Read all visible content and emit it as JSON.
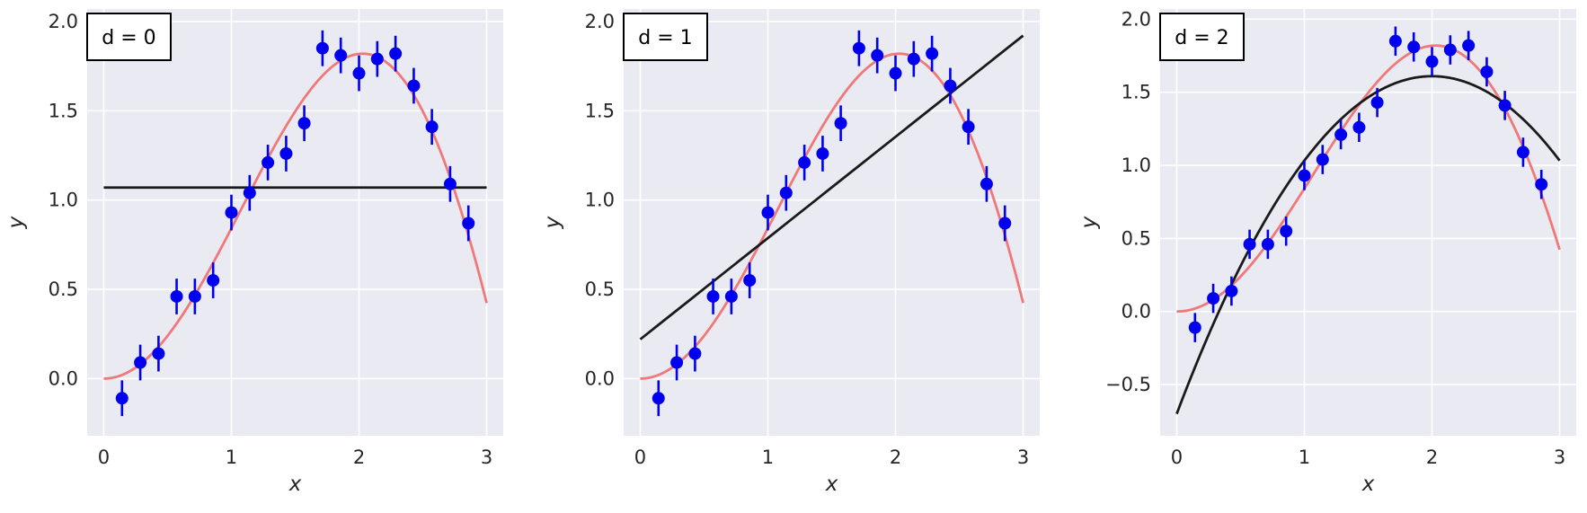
{
  "colors": {
    "plot_background": "#EAEAF2",
    "grid": "#FFFFFF",
    "true_curve": "#F07878",
    "fit_line": "#1A1A1A",
    "data_points": "#0000EE"
  },
  "chart_data": [
    {
      "type": "scatter",
      "title": "",
      "label": "d = 0",
      "xlabel": "x",
      "ylabel": "y",
      "xlim": [
        -0.13,
        3.13
      ],
      "ylim": [
        -0.32,
        2.07
      ],
      "xticks": [
        0,
        1,
        2,
        3
      ],
      "xtick_labels": [
        "0",
        "1",
        "2",
        "3"
      ],
      "yticks": [
        0.0,
        0.5,
        1.0,
        1.5,
        2.0
      ],
      "ytick_labels": [
        "0.0",
        "0.5",
        "1.0",
        "1.5",
        "2.0"
      ],
      "grid": true,
      "legend_position": "top-left",
      "true_curve": "y = x * sin(x)",
      "fit": {
        "degree": 0,
        "coefficients": [
          1.07
        ]
      },
      "points": {
        "x": [
          0.143,
          0.286,
          0.429,
          0.571,
          0.714,
          0.857,
          1.0,
          1.143,
          1.286,
          1.429,
          1.571,
          1.714,
          1.857,
          2.0,
          2.143,
          2.286,
          2.429,
          2.571,
          2.714,
          2.857
        ],
        "y": [
          -0.11,
          0.09,
          0.14,
          0.46,
          0.46,
          0.55,
          0.93,
          1.04,
          1.21,
          1.26,
          1.43,
          1.85,
          1.81,
          1.71,
          1.79,
          1.82,
          1.64,
          1.41,
          1.09,
          0.87
        ],
        "yerr": 0.1
      }
    },
    {
      "type": "scatter",
      "title": "",
      "label": "d = 1",
      "xlabel": "x",
      "ylabel": "y",
      "xlim": [
        -0.13,
        3.13
      ],
      "ylim": [
        -0.32,
        2.07
      ],
      "xticks": [
        0,
        1,
        2,
        3
      ],
      "xtick_labels": [
        "0",
        "1",
        "2",
        "3"
      ],
      "yticks": [
        0.0,
        0.5,
        1.0,
        1.5,
        2.0
      ],
      "ytick_labels": [
        "0.0",
        "0.5",
        "1.0",
        "1.5",
        "2.0"
      ],
      "grid": true,
      "legend_position": "top-left",
      "true_curve": "y = x * sin(x)",
      "fit": {
        "degree": 1,
        "coefficients": [
          0.22,
          0.567
        ]
      },
      "points": {
        "x": [
          0.143,
          0.286,
          0.429,
          0.571,
          0.714,
          0.857,
          1.0,
          1.143,
          1.286,
          1.429,
          1.571,
          1.714,
          1.857,
          2.0,
          2.143,
          2.286,
          2.429,
          2.571,
          2.714,
          2.857
        ],
        "y": [
          -0.11,
          0.09,
          0.14,
          0.46,
          0.46,
          0.55,
          0.93,
          1.04,
          1.21,
          1.26,
          1.43,
          1.85,
          1.81,
          1.71,
          1.79,
          1.82,
          1.64,
          1.41,
          1.09,
          0.87
        ],
        "yerr": 0.1
      }
    },
    {
      "type": "scatter",
      "title": "",
      "label": "d = 2",
      "xlabel": "x",
      "ylabel": "y",
      "xlim": [
        -0.13,
        3.13
      ],
      "ylim": [
        -0.85,
        2.07
      ],
      "xticks": [
        0,
        1,
        2,
        3
      ],
      "xtick_labels": [
        "0",
        "1",
        "2",
        "3"
      ],
      "yticks": [
        -0.5,
        0.0,
        0.5,
        1.0,
        1.5,
        2.0
      ],
      "ytick_labels": [
        "−0.5",
        "0.0",
        "0.5",
        "1.0",
        "1.5",
        "2.0"
      ],
      "grid": true,
      "legend_position": "top-left",
      "true_curve": "y = x * sin(x)",
      "fit": {
        "degree": 2,
        "coefficients": [
          -0.7,
          2.31,
          -0.5775
        ]
      },
      "points": {
        "x": [
          0.143,
          0.286,
          0.429,
          0.571,
          0.714,
          0.857,
          1.0,
          1.143,
          1.286,
          1.429,
          1.571,
          1.714,
          1.857,
          2.0,
          2.143,
          2.286,
          2.429,
          2.571,
          2.714,
          2.857
        ],
        "y": [
          -0.11,
          0.09,
          0.14,
          0.46,
          0.46,
          0.55,
          0.93,
          1.04,
          1.21,
          1.26,
          1.43,
          1.85,
          1.81,
          1.71,
          1.79,
          1.82,
          1.64,
          1.41,
          1.09,
          0.87
        ],
        "yerr": 0.1
      }
    }
  ]
}
